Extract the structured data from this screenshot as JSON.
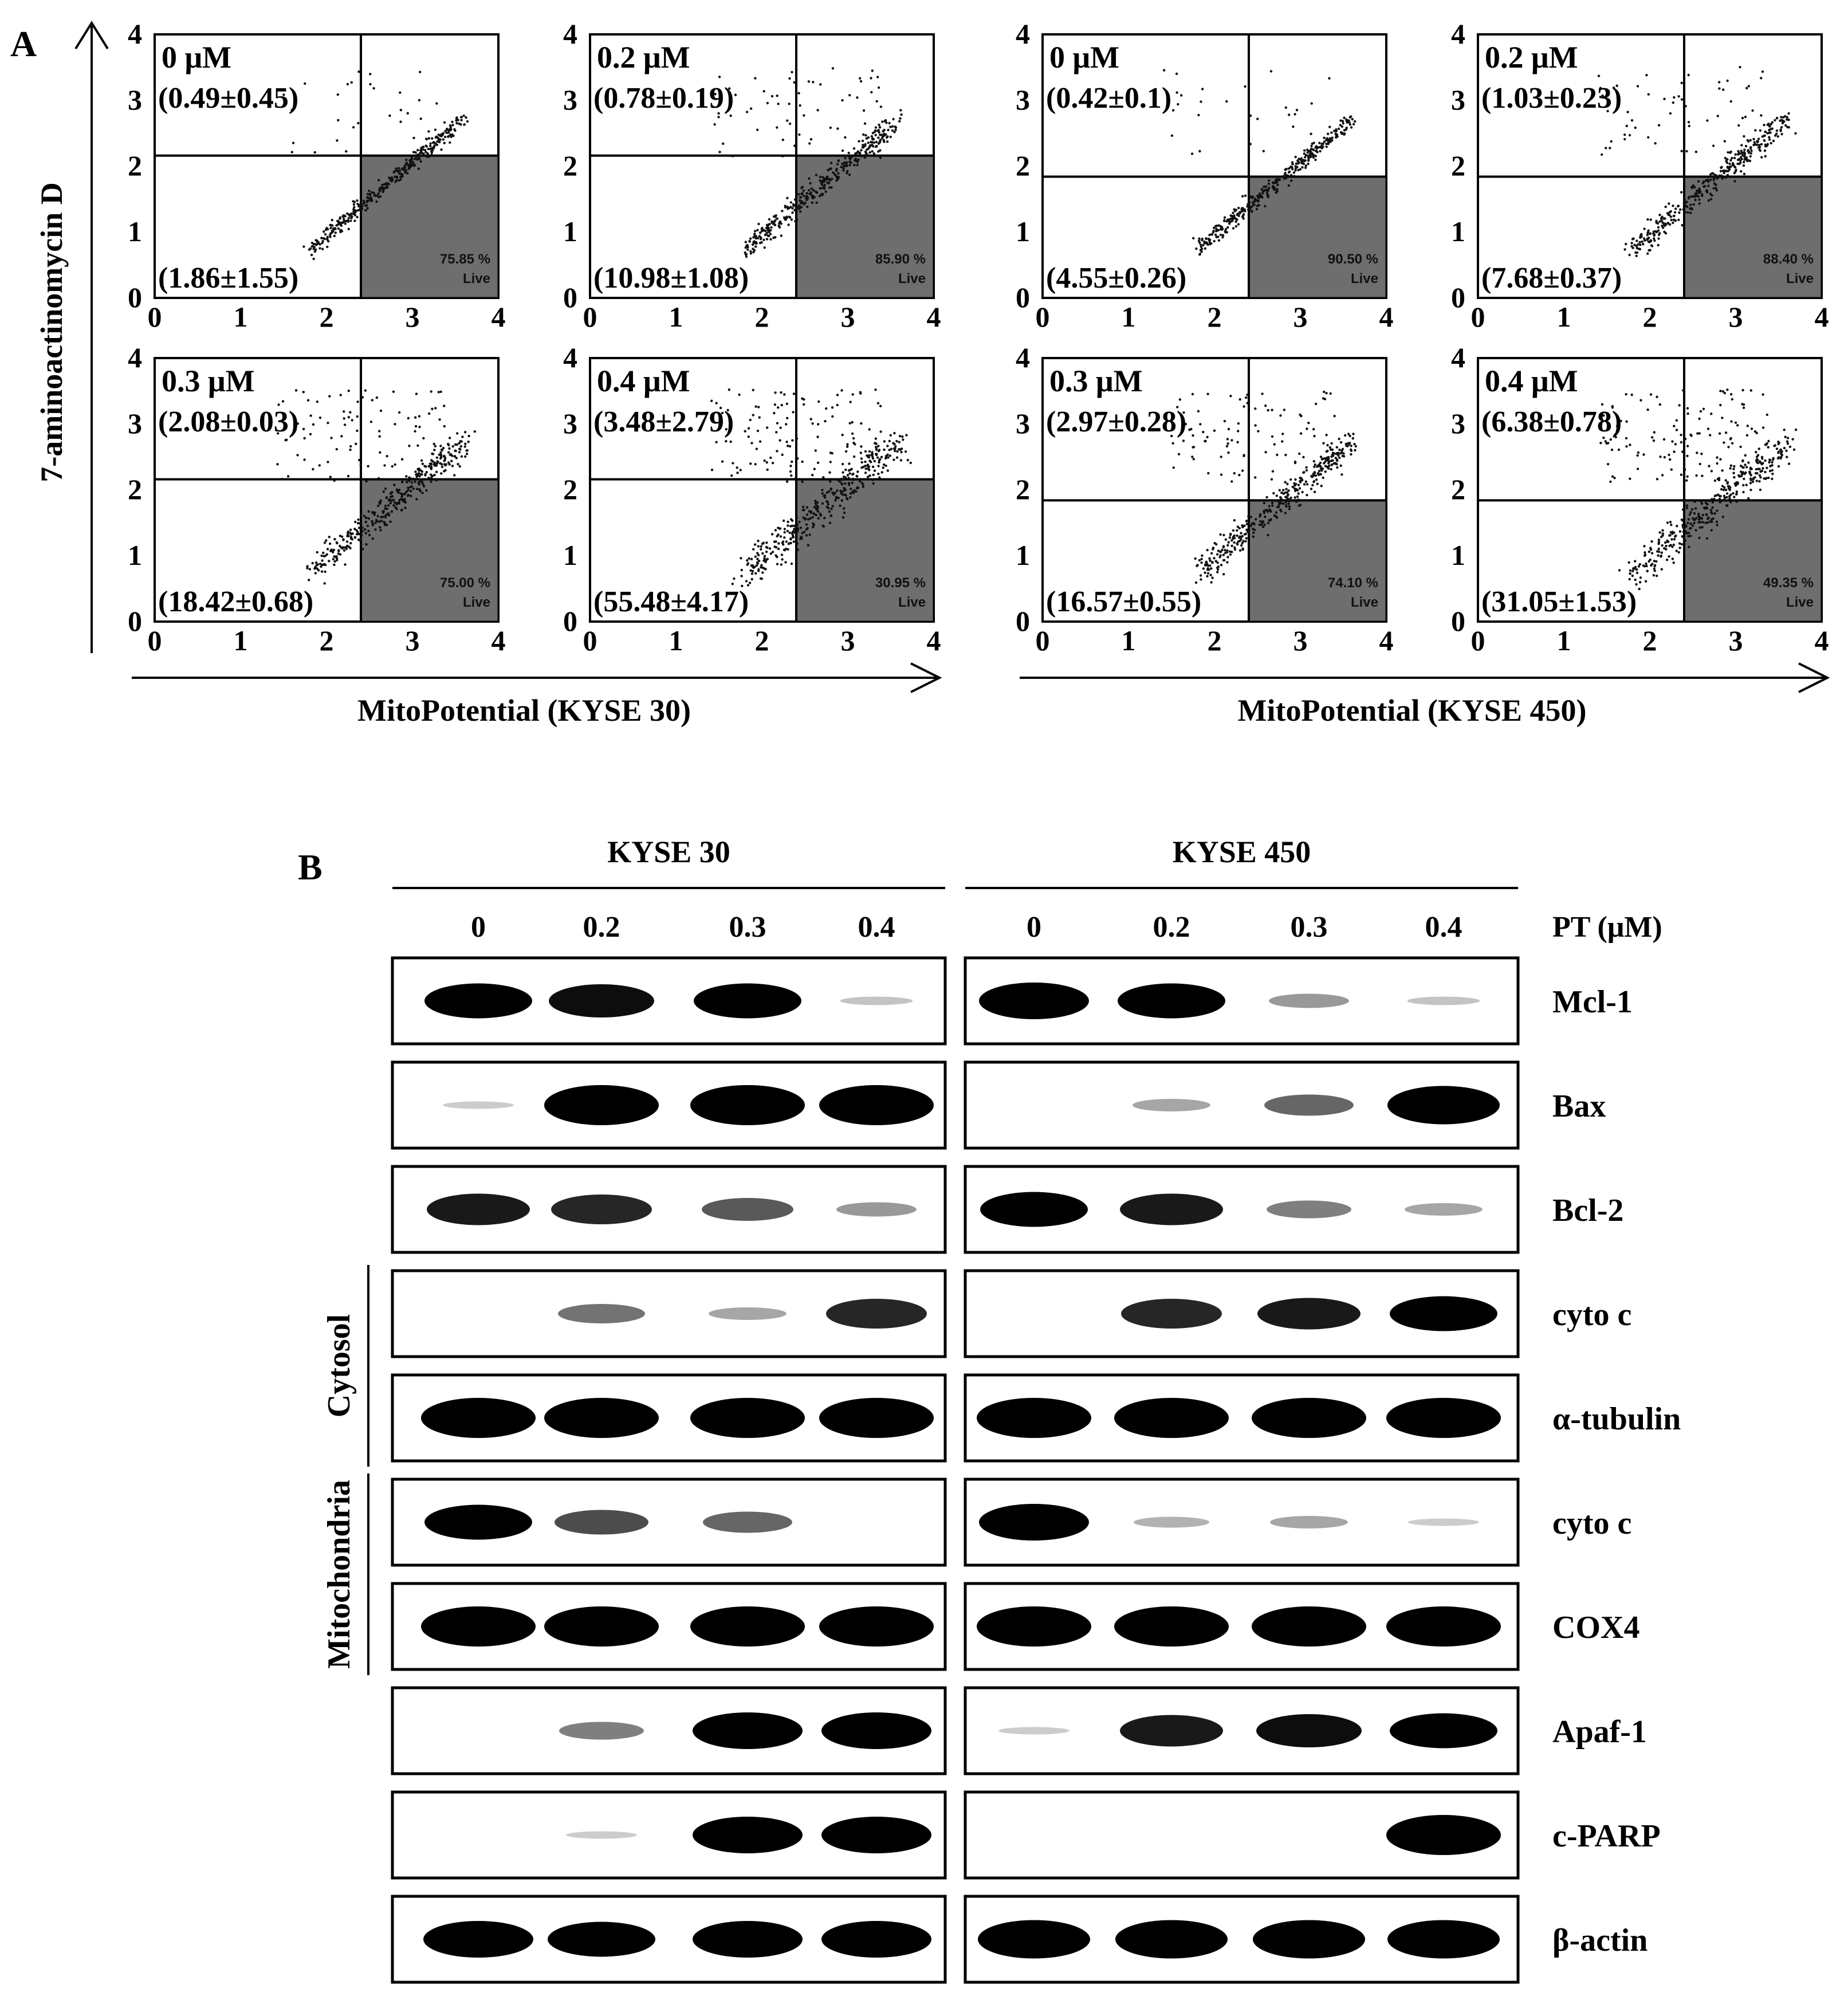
{
  "panel_a": {
    "letter": "A",
    "y_axis_title": "7-aminoactinomycin D",
    "tick_labels": [
      "0",
      "1",
      "2",
      "3",
      "4"
    ],
    "groups": [
      {
        "x_axis_title": "MitoPotential  (KYSE 30)",
        "plots": [
          {
            "conc": "0 μM",
            "upper_left": "(0.49±0.45)",
            "lower_left": "(1.86±1.55)",
            "live_pct": "75.85 %",
            "live_label": "Live"
          },
          {
            "conc": "0.2 μM",
            "upper_left": "(0.78±0.19)",
            "lower_left": "(10.98±1.08)",
            "live_pct": "85.90 %",
            "live_label": "Live"
          },
          {
            "conc": "0.3 μM",
            "upper_left": "(2.08±0.03)",
            "lower_left": "(18.42±0.68)",
            "live_pct": "75.00 %",
            "live_label": "Live"
          },
          {
            "conc": "0.4 μM",
            "upper_left": "(3.48±2.79)",
            "lower_left": "(55.48±4.17)",
            "live_pct": "30.95 %",
            "live_label": "Live"
          }
        ]
      },
      {
        "x_axis_title": "MitoPotential  (KYSE 450)",
        "plots": [
          {
            "conc": "0 μM",
            "upper_left": "(0.42±0.1)",
            "lower_left": "(4.55±0.26)",
            "live_pct": "90.50 %",
            "live_label": "Live"
          },
          {
            "conc": "0.2 μM",
            "upper_left": "(1.03±0.23)",
            "lower_left": "(7.68±0.37)",
            "live_pct": "88.40 %",
            "live_label": "Live"
          },
          {
            "conc": "0.3 μM",
            "upper_left": "(2.97±0.28)",
            "lower_left": "(16.57±0.55)",
            "live_pct": "74.10 %",
            "live_label": "Live"
          },
          {
            "conc": "0.4 μM",
            "upper_left": "(6.38±0.78)",
            "lower_left": "(31.05±1.53)",
            "live_pct": "49.35 %",
            "live_label": "Live"
          }
        ]
      }
    ]
  },
  "panel_b": {
    "letter": "B",
    "cell_lines": [
      "KYSE 30",
      "KYSE 450"
    ],
    "lanes": [
      "0",
      "0.2",
      "0.3",
      "0.4"
    ],
    "treatment_label": "PT (μM)",
    "fractions": [
      "Cytosol",
      "Mitochondria"
    ],
    "band_color": "#000000",
    "blots": [
      {
        "label": "Mcl-1",
        "intensity": [
          [
            0.85,
            0.8,
            0.85,
            0.08
          ],
          [
            0.9,
            0.85,
            0.25,
            0.08
          ]
        ]
      },
      {
        "label": "Bax",
        "intensity": [
          [
            0.05,
            1.0,
            1.0,
            1.0
          ],
          [
            0.0,
            0.2,
            0.45,
            0.95
          ]
        ]
      },
      {
        "label": "Bcl-2",
        "intensity": [
          [
            0.75,
            0.7,
            0.5,
            0.25
          ],
          [
            0.85,
            0.75,
            0.35,
            0.2
          ]
        ]
      },
      {
        "label": "cyto c",
        "intensity": [
          [
            0.0,
            0.4,
            0.2,
            0.7
          ],
          [
            0.0,
            0.7,
            0.75,
            0.85
          ]
        ]
      },
      {
        "label": "α-tubulin",
        "intensity": [
          [
            1.0,
            1.0,
            1.0,
            1.0
          ],
          [
            1.0,
            1.0,
            1.0,
            1.0
          ]
        ]
      },
      {
        "label": "cyto c",
        "intensity": [
          [
            0.85,
            0.55,
            0.45,
            0.0
          ],
          [
            0.9,
            0.15,
            0.2,
            0.05
          ]
        ]
      },
      {
        "label": "COX4",
        "intensity": [
          [
            1.0,
            1.0,
            1.0,
            1.0
          ],
          [
            1.0,
            1.0,
            1.0,
            1.0
          ]
        ]
      },
      {
        "label": "Apaf-1",
        "intensity": [
          [
            0.0,
            0.35,
            0.9,
            0.9
          ],
          [
            0.05,
            0.75,
            0.8,
            0.85
          ]
        ]
      },
      {
        "label": "c-PARP",
        "intensity": [
          [
            0.0,
            0.05,
            0.9,
            0.9
          ],
          [
            0.0,
            0.0,
            0.0,
            1.0
          ]
        ]
      },
      {
        "label": "β-actin",
        "intensity": [
          [
            0.9,
            0.85,
            0.9,
            0.9
          ],
          [
            0.95,
            0.95,
            0.95,
            0.95
          ]
        ]
      }
    ]
  }
}
